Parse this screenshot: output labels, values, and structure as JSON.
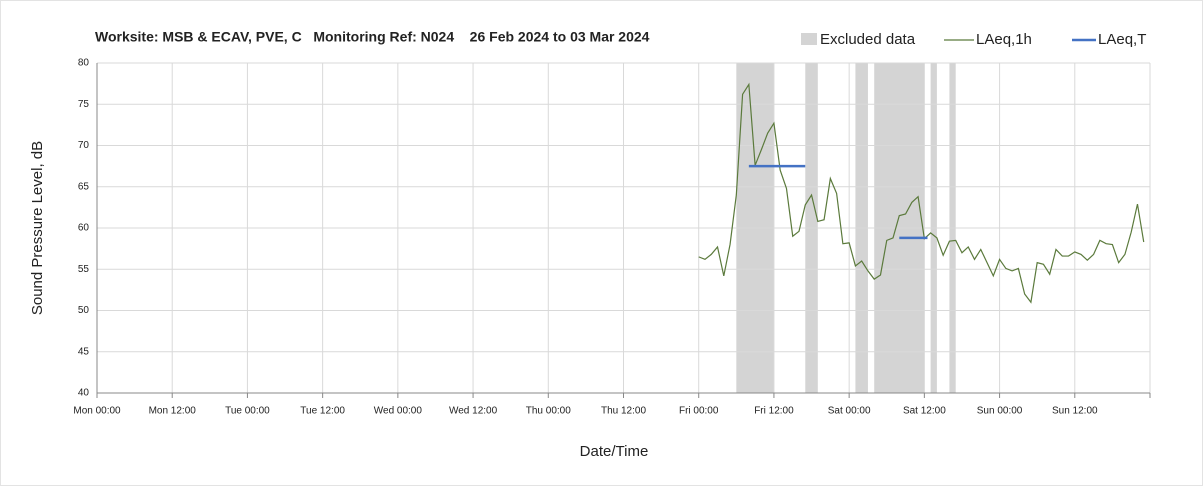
{
  "chart_data": {
    "type": "line",
    "title": "Worksite: MSB & ECAV, PVE, C   Monitoring Ref: N024    26 Feb 2024 to 03 Mar 2024",
    "xlabel": "Date/Time",
    "ylabel": "Sound Pressure Level, dB",
    "xlim": [
      0,
      168
    ],
    "xticks": [
      {
        "value": 0,
        "label": "Mon 00:00"
      },
      {
        "value": 12,
        "label": "Mon 12:00"
      },
      {
        "value": 24,
        "label": "Tue 00:00"
      },
      {
        "value": 36,
        "label": "Tue 12:00"
      },
      {
        "value": 48,
        "label": "Wed 00:00"
      },
      {
        "value": 60,
        "label": "Wed 12:00"
      },
      {
        "value": 72,
        "label": "Thu 00:00"
      },
      {
        "value": 84,
        "label": "Thu 12:00"
      },
      {
        "value": 96,
        "label": "Fri 00:00"
      },
      {
        "value": 108,
        "label": "Fri 12:00"
      },
      {
        "value": 120,
        "label": "Sat 00:00"
      },
      {
        "value": 132,
        "label": "Sat 12:00"
      },
      {
        "value": 144,
        "label": "Sun 00:00"
      },
      {
        "value": 156,
        "label": "Sun 12:00"
      },
      168
    ],
    "ylim": [
      40,
      80
    ],
    "yticks": [
      40,
      45,
      50,
      55,
      60,
      65,
      70,
      75,
      80
    ],
    "grid": true,
    "excluded": {
      "name": "Excluded data",
      "color": "#d4d4d4",
      "periods": [
        [
          102,
          108
        ],
        [
          113,
          115
        ],
        [
          121,
          123
        ],
        [
          124,
          132
        ],
        [
          133,
          134
        ],
        [
          136,
          137
        ]
      ]
    },
    "series": [
      {
        "name": "LAeq,1h",
        "color": "#5b7a3c",
        "x": [
          96,
          97,
          98,
          99,
          100,
          101,
          102,
          103,
          104,
          105,
          106,
          107,
          108,
          109,
          110,
          111,
          112,
          113,
          114,
          115,
          116,
          117,
          118,
          119,
          120,
          121,
          122,
          123,
          124,
          125,
          126,
          127,
          128,
          129,
          130,
          131,
          132,
          133,
          134,
          135,
          136,
          137,
          138,
          139,
          140,
          141,
          142,
          143,
          144,
          145,
          146,
          147,
          148,
          149,
          150,
          151,
          152,
          153,
          154,
          155,
          156,
          157,
          158,
          159,
          160,
          161,
          162,
          163,
          164,
          165,
          166,
          167
        ],
        "values": [
          56.5,
          56.2,
          56.8,
          57.7,
          54.2,
          58,
          64,
          76.2,
          77.4,
          67.6,
          69.5,
          71.5,
          72.7,
          67,
          64.8,
          59,
          59.6,
          62.8,
          64,
          60.8,
          61,
          66,
          64.2,
          58.1,
          58.2,
          55.4,
          56,
          54.8,
          53.8,
          54.3,
          58.5,
          58.8,
          61.5,
          61.7,
          63.1,
          63.8,
          58.7,
          59.4,
          58.8,
          56.7,
          58.4,
          58.5,
          57,
          57.7,
          56.2,
          57.4,
          55.8,
          54.2,
          56.2,
          55.1,
          54.8,
          55.1,
          52,
          51,
          55.8,
          55.6,
          54.4,
          57.4,
          56.6,
          56.6,
          57.1,
          56.8,
          56.1,
          56.8,
          58.5,
          58.1,
          58,
          55.8,
          56.8,
          59.5,
          62.9,
          58.3
        ]
      },
      {
        "name": "LAeq,T",
        "color": "#4472c4",
        "segments": [
          {
            "start": 104,
            "end": 113,
            "value": 67.5
          },
          {
            "start": 128,
            "end": 132.5,
            "value": 58.8
          }
        ]
      }
    ]
  }
}
